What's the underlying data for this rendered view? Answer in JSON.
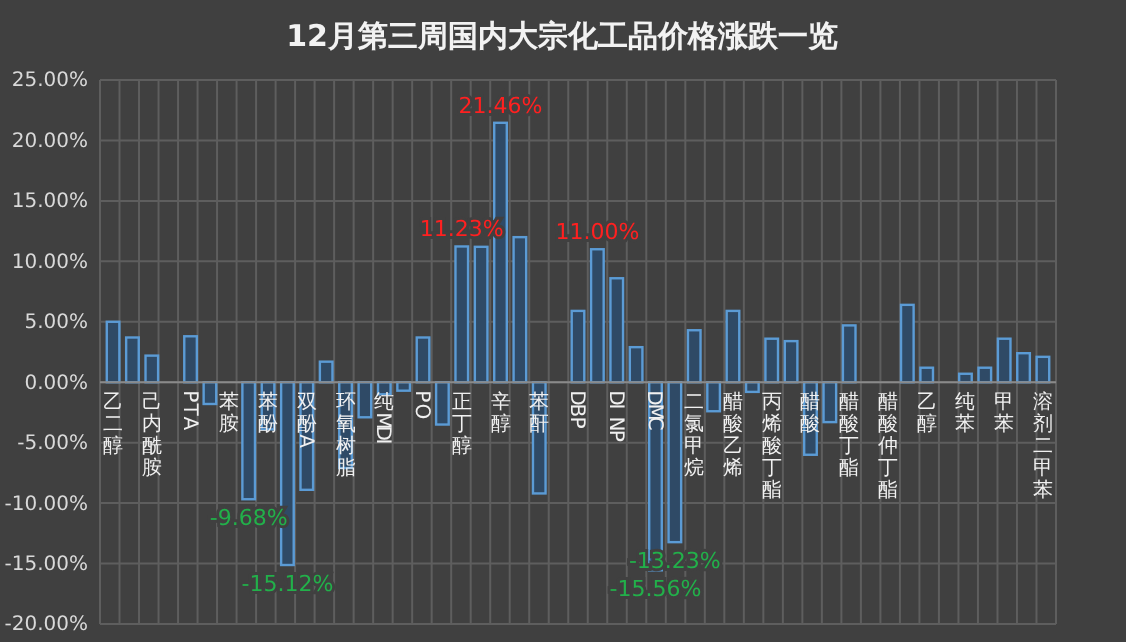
{
  "chart_data": {
    "type": "bar",
    "title": "12月第三周国内大宗化工品价格涨跌一览",
    "categories": [
      "乙二醇",
      null,
      "己内酰胺",
      null,
      "PTA",
      null,
      "苯胺",
      null,
      "苯酚",
      null,
      "双酚A",
      null,
      "环氧树脂",
      null,
      "纯MDI",
      null,
      "PO",
      null,
      "正丁醇",
      null,
      "辛醇",
      null,
      "苯酐",
      null,
      "DBP",
      null,
      "DINP",
      null,
      "DMC",
      null,
      "二氯甲烷",
      null,
      "醋酸乙烯",
      null,
      "丙烯酸丁酯",
      null,
      "醋酸",
      null,
      "醋酸丁酯",
      null,
      "醋酸仲丁酯",
      null,
      "乙醇",
      null,
      "纯苯",
      null,
      "甲苯",
      null,
      "溶剂二甲苯"
    ],
    "values": [
      5.0,
      3.7,
      2.2,
      0,
      3.8,
      -1.8,
      0,
      -9.68,
      -3.9,
      -15.12,
      -8.9,
      1.7,
      -7.1,
      -2.9,
      -1.0,
      -0.7,
      3.7,
      -3.5,
      11.23,
      11.2,
      21.46,
      12.0,
      -9.2,
      0,
      5.9,
      11.0,
      8.6,
      2.9,
      -15.56,
      -13.23,
      4.3,
      -2.4,
      5.9,
      -0.8,
      3.6,
      3.4,
      -6.0,
      -3.3,
      4.7,
      0,
      0,
      6.4,
      1.2,
      0,
      0.7,
      1.2,
      3.6,
      2.4,
      2.1
    ],
    "value_labels": [
      null,
      null,
      null,
      null,
      null,
      null,
      null,
      "-9.68%",
      null,
      "-15.12%",
      null,
      null,
      null,
      null,
      null,
      null,
      null,
      null,
      "11.23%",
      null,
      "21.46%",
      null,
      null,
      null,
      null,
      "11.00%",
      null,
      null,
      "-15.56%",
      "-13.23%",
      null,
      null,
      null,
      null,
      null,
      null,
      null,
      null,
      null,
      null,
      null,
      null,
      null,
      null,
      null,
      null,
      null,
      null,
      null
    ],
    "color": "#5b9bd5",
    "ylim": [
      -20,
      25
    ],
    "yticks": [
      {
        "value": -20,
        "label": "-20.00%"
      },
      {
        "value": -15,
        "label": "-15.00%"
      },
      {
        "value": -10,
        "label": "-10.00%"
      },
      {
        "value": -5,
        "label": "-5.00%"
      },
      {
        "value": 0,
        "label": "0.00%"
      },
      {
        "value": 5,
        "label": "5.00%"
      },
      {
        "value": 10,
        "label": "10.00%"
      },
      {
        "value": 15,
        "label": "15.00%"
      },
      {
        "value": 20,
        "label": "20.00%"
      },
      {
        "value": 25,
        "label": "25.00%"
      }
    ],
    "grid": true
  }
}
